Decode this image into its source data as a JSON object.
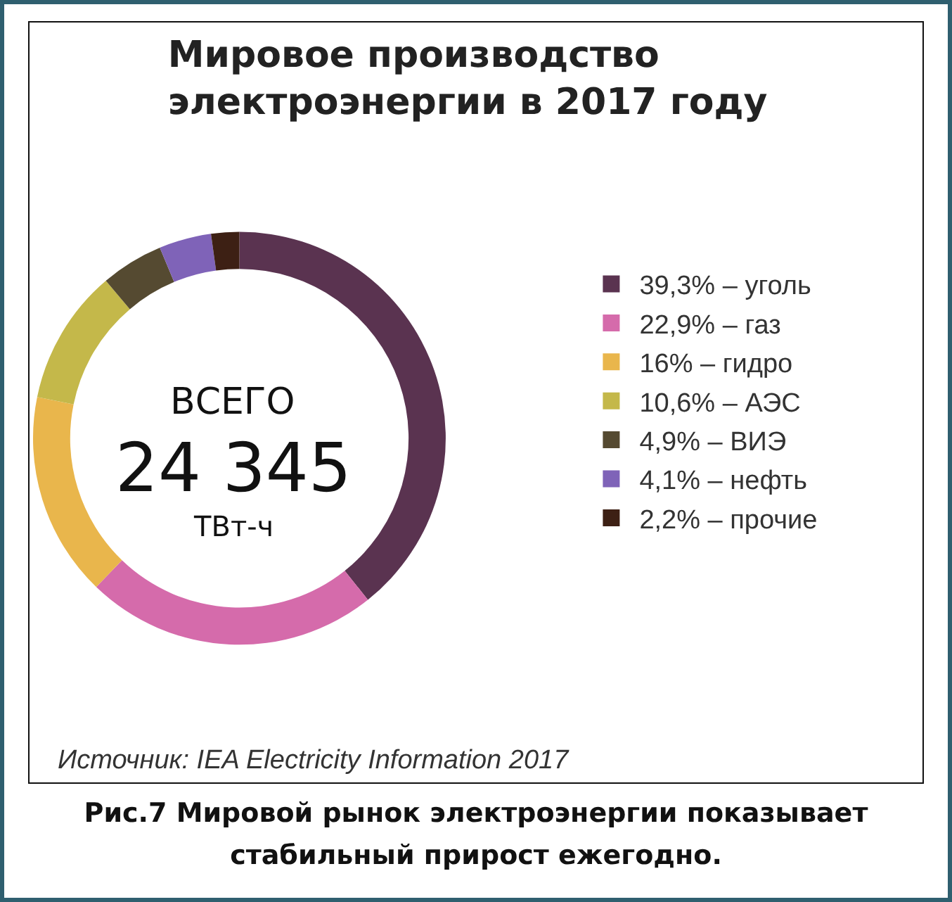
{
  "chart_data": {
    "type": "donut",
    "title": "Мировое производство\nэлектроэнергии в 2017 году",
    "categories": [
      "39,3% – уголь",
      "22,9% – газ",
      "16% – гидро",
      "10,6% – АЭС",
      "4,9% – ВИЭ",
      "4,1% – нефть",
      "2,2% – прочие"
    ],
    "values": [
      39.3,
      22.9,
      16,
      10.6,
      4.9,
      4.1,
      2.2
    ],
    "colors": [
      "#5a3350",
      "#d56bab",
      "#e9b64c",
      "#c4b84a",
      "#554a31",
      "#7f63b8",
      "#3d2014"
    ],
    "legend": "right",
    "annotations": [
      "ВСЕГО",
      "24 345",
      "ТВт-ч",
      "Источник: IEA Electricity Information 2017",
      "Рис.7 Мировой рынок электроэнергии показывает стабильный прирост ежегодно."
    ]
  }
}
